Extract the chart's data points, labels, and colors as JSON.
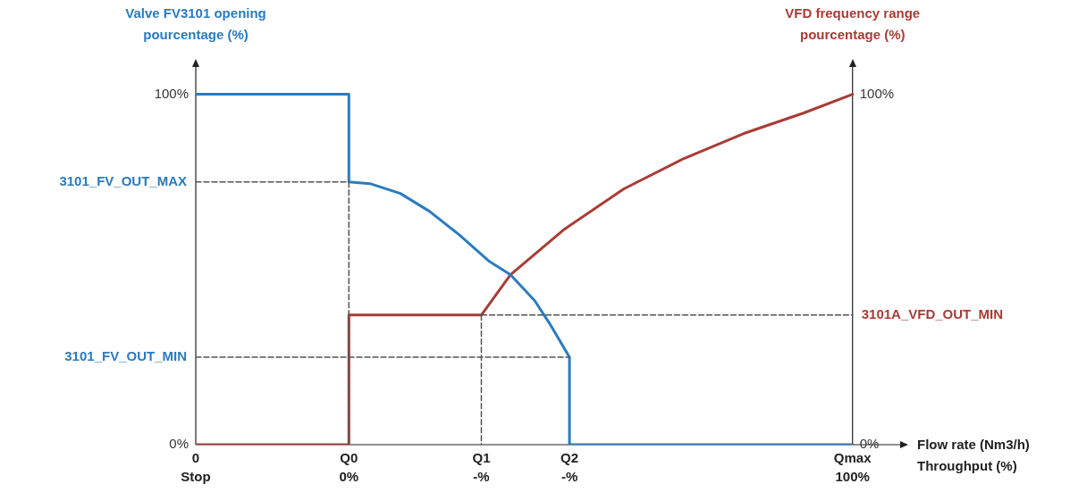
{
  "chart_data": {
    "type": "line",
    "ylabel": "Valve FV3101 opening\npourcentage (%)",
    "y2label": "VFD frequency range\npourcentage (%)",
    "xlabel": "Flow rate (Nm3/h)\nThroughput (%)",
    "xlim": [
      -30.4,
      110.7
    ],
    "xticks": [
      {
        "value": -30.4,
        "label": "Stop"
      },
      {
        "value": 0,
        "label": "0%"
      },
      {
        "value": 26.3,
        "label": "-%"
      },
      {
        "value": 43.8,
        "label": "-%"
      },
      {
        "value": 100,
        "label": "100%"
      }
    ],
    "ylim": [
      0,
      108.3
    ],
    "yticks": [
      {
        "value": 0,
        "label": "0%"
      },
      {
        "value": 100,
        "label": "100%"
      }
    ],
    "y2lim": [
      0,
      108.3
    ],
    "y2ticks": [
      {
        "value": 0,
        "label": "0%"
      },
      {
        "value": 100,
        "label": "100%"
      }
    ],
    "annotations": [
      {
        "text": "3101_FV_OUT_MAX",
        "x": -30.4,
        "y": 75
      },
      {
        "text": "3101_FV_OUT_MIN",
        "x": -30.4,
        "y": 25
      },
      {
        "text": "3101A_VFD_OUT_MIN",
        "x": 100,
        "y": 37
      },
      {
        "text": "0",
        "x": -30.4,
        "y": 0
      },
      {
        "text": "Q0",
        "x": 0,
        "y": 0
      },
      {
        "text": "Q1",
        "x": 26.3,
        "y": 0
      },
      {
        "text": "Q2",
        "x": 43.8,
        "y": 0
      },
      {
        "text": "Qmax",
        "x": 100,
        "y": 0
      }
    ],
    "grid": false,
    "legend": false,
    "marker": "none",
    "line_style": "solid",
    "series": [
      {
        "color": "#555555",
        "line_style": "dashed",
        "x": [
          -30.4,
          0
        ],
        "values": [
          75,
          75
        ]
      },
      {
        "color": "#555555",
        "line_style": "dashed",
        "x": [
          0,
          0
        ],
        "values": [
          75,
          0
        ]
      },
      {
        "color": "#555555",
        "line_style": "dashed",
        "x": [
          -30.4,
          43.8
        ],
        "values": [
          25,
          25
        ]
      },
      {
        "color": "#555555",
        "line_style": "dashed",
        "x": [
          26.3,
          26.3
        ],
        "values": [
          37,
          0
        ]
      },
      {
        "color": "#555555",
        "line_style": "dashed",
        "axis": "y2",
        "x": [
          26.3,
          100
        ],
        "values": [
          37,
          37
        ]
      },
      {
        "color": "#2b7bc0",
        "x": [
          -30.4,
          0,
          0,
          4.2,
          10.2,
          16.0,
          21.9,
          27.9,
          32.1,
          36.9,
          39.8,
          43.8,
          43.8,
          100
        ],
        "values": [
          100,
          100,
          75,
          74.5,
          71.7,
          66.6,
          59.9,
          52.3,
          48.5,
          41.1,
          34.7,
          25,
          0,
          0
        ]
      },
      {
        "color": "#a93c36",
        "axis": "y2",
        "x": [
          -30.4,
          0,
          0,
          26.3,
          32.1,
          42.8,
          54.6,
          66.4,
          78.4,
          90.2,
          100
        ],
        "values": [
          0,
          0,
          37,
          37,
          48.5,
          61.5,
          73,
          81.6,
          88.8,
          94.6,
          100
        ]
      }
    ]
  }
}
